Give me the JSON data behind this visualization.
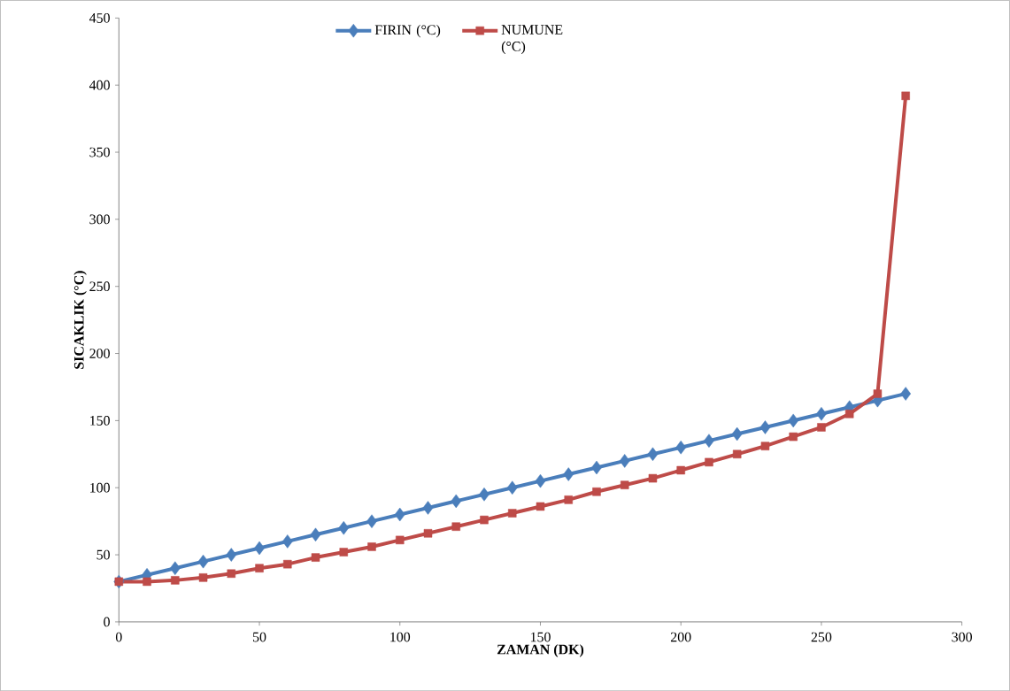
{
  "chart_data": {
    "type": "line",
    "xlabel": "ZAMAN (DK)",
    "ylabel": "SICAKLIK (°C)",
    "x": [
      0,
      10,
      20,
      30,
      40,
      50,
      60,
      70,
      80,
      90,
      100,
      110,
      120,
      130,
      140,
      150,
      160,
      170,
      180,
      190,
      200,
      210,
      220,
      230,
      240,
      250,
      260,
      270,
      280
    ],
    "series": [
      {
        "name": "FIRIN (°C)",
        "color": "#4a7ebb",
        "marker": "diamond",
        "values": [
          30,
          35,
          40,
          45,
          50,
          55,
          60,
          65,
          70,
          75,
          80,
          85,
          90,
          95,
          100,
          105,
          110,
          115,
          120,
          125,
          130,
          135,
          140,
          145,
          150,
          155,
          160,
          165,
          170
        ]
      },
      {
        "name": "NUMUNE (°C)",
        "color": "#be4b48",
        "marker": "square",
        "values": [
          30,
          30,
          31,
          33,
          36,
          40,
          43,
          48,
          52,
          56,
          61,
          66,
          71,
          76,
          81,
          86,
          91,
          97,
          102,
          107,
          113,
          119,
          125,
          131,
          138,
          145,
          155,
          170,
          392
        ]
      }
    ],
    "xlim": [
      0,
      300
    ],
    "xticks": [
      0,
      50,
      100,
      150,
      200,
      250,
      300
    ],
    "ylim": [
      0,
      450
    ],
    "yticks": [
      0,
      50,
      100,
      150,
      200,
      250,
      300,
      350,
      400,
      450
    ],
    "legend": "top",
    "grid": false,
    "line_style": "solid"
  }
}
